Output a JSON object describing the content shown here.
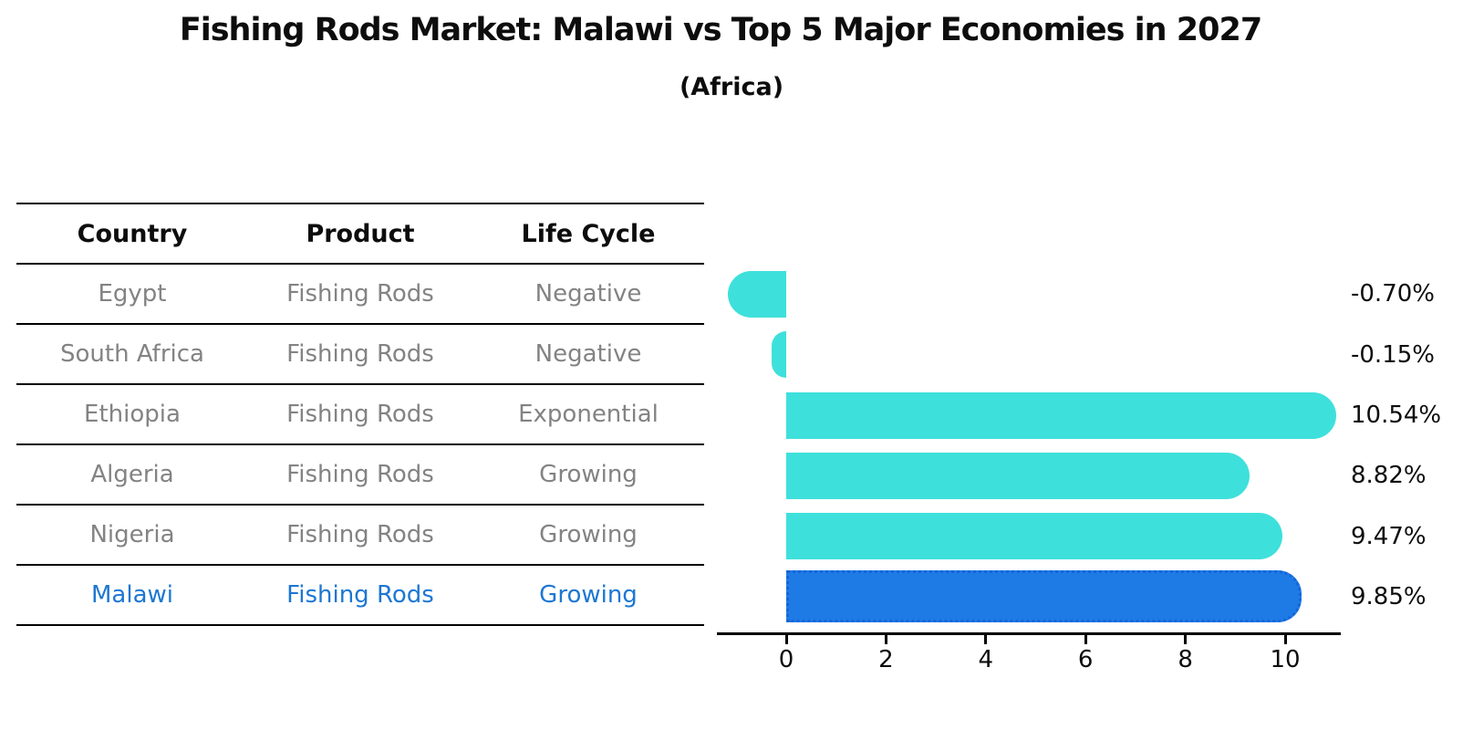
{
  "header": {
    "title": "Fishing Rods Market: Malawi vs Top 5 Major Economies in 2027",
    "subtitle": "(Africa)"
  },
  "table": {
    "headers": [
      "Country",
      "Product",
      "Life Cycle"
    ],
    "rows": [
      {
        "country": "Egypt",
        "product": "Fishing Rods",
        "life_cycle": "Negative",
        "highlight": false
      },
      {
        "country": "South Africa",
        "product": "Fishing Rods",
        "life_cycle": "Negative",
        "highlight": false
      },
      {
        "country": "Ethiopia",
        "product": "Fishing Rods",
        "life_cycle": "Exponential",
        "highlight": false
      },
      {
        "country": "Algeria",
        "product": "Fishing Rods",
        "life_cycle": "Growing",
        "highlight": false
      },
      {
        "country": "Nigeria",
        "product": "Fishing Rods",
        "life_cycle": "Growing",
        "highlight": true
      }
    ],
    "highlight_row": {
      "country": "Malawi",
      "product": "Fishing Rods",
      "life_cycle": "Growing"
    }
  },
  "chart_data": {
    "type": "bar",
    "orientation": "horizontal",
    "title": "Fishing Rods Market: Malawi vs Top 5 Major Economies in 2027",
    "subtitle": "(Africa)",
    "categories": [
      "Egypt",
      "South Africa",
      "Ethiopia",
      "Algeria",
      "Nigeria",
      "Malawi"
    ],
    "values": [
      -0.7,
      -0.15,
      10.54,
      8.82,
      9.47,
      9.85
    ],
    "value_labels": [
      "-0.70%",
      "-0.15%",
      "10.54%",
      "8.82%",
      "9.47%",
      "9.85%"
    ],
    "x_ticks": [
      "0",
      "2",
      "4",
      "6",
      "8",
      "10"
    ],
    "x_tick_values": [
      0,
      2,
      4,
      6,
      8,
      10
    ],
    "xlim": [
      -1.4,
      11.1
    ],
    "grid": false,
    "legend": "none",
    "highlight_category": "Malawi",
    "colors": {
      "bar_default": "#3ee0db",
      "bar_highlight": "#1e7ae5",
      "bar_highlight_border": "#1565d8",
      "highlight_text": "#1c77d2",
      "table_text": "#838383",
      "heading_text": "#0d0d0d",
      "axis_line": "#000000"
    }
  }
}
